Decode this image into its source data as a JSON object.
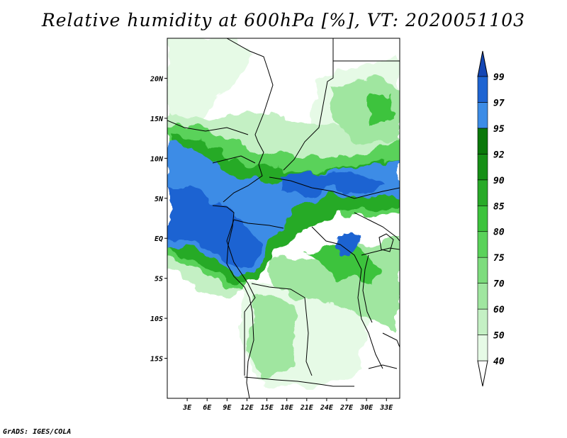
{
  "title": "Relative humidity at 600hPa [%], VT: 2020051103",
  "footer": "GrADS: IGES/COLA",
  "map": {
    "lon_range": [
      0,
      35
    ],
    "lat_range": [
      -20,
      25
    ],
    "lon_ticks": [
      {
        "v": 3,
        "label": "3E"
      },
      {
        "v": 6,
        "label": "6E"
      },
      {
        "v": 9,
        "label": "9E"
      },
      {
        "v": 12,
        "label": "12E"
      },
      {
        "v": 15,
        "label": "15E"
      },
      {
        "v": 18,
        "label": "18E"
      },
      {
        "v": 21,
        "label": "21E"
      },
      {
        "v": 24,
        "label": "24E"
      },
      {
        "v": 27,
        "label": "27E"
      },
      {
        "v": 30,
        "label": "30E"
      },
      {
        "v": 33,
        "label": "33E"
      }
    ],
    "lat_ticks": [
      {
        "v": 20,
        "label": "20N"
      },
      {
        "v": 15,
        "label": "15N"
      },
      {
        "v": 10,
        "label": "10N"
      },
      {
        "v": 5,
        "label": "5N"
      },
      {
        "v": 0,
        "label": "EQ"
      },
      {
        "v": -5,
        "label": "5S"
      },
      {
        "v": -10,
        "label": "10S"
      },
      {
        "v": -15,
        "label": "15S"
      }
    ]
  },
  "colorbar": {
    "levels": [
      "40",
      "50",
      "60",
      "70",
      "75",
      "80",
      "85",
      "90",
      "92",
      "95",
      "97",
      "99"
    ],
    "colors": [
      "#ffffff",
      "#e6fae6",
      "#c4f0c4",
      "#a0e6a0",
      "#7ddc7d",
      "#5ad25a",
      "#3cc33c",
      "#28aa28",
      "#168f16",
      "#0a780a",
      "#3c8ce6",
      "#1e64d2",
      "#1446b4"
    ]
  },
  "legend_colors": {
    "background": "#ffffff",
    "ocean": "#ffffff",
    "boundary": "#000000"
  }
}
